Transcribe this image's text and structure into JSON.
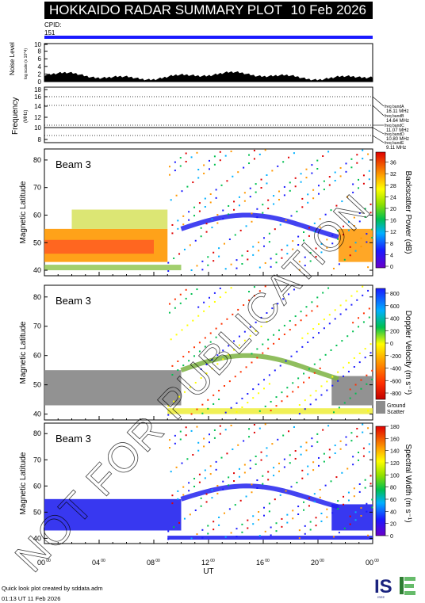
{
  "header": {
    "title": "HOKKAIDO RADAR SUMMARY PLOT",
    "date": "10 Feb 2026"
  },
  "cpid": {
    "label": "CPID:",
    "value": "151"
  },
  "noise": {
    "ylabel": "Noise Level",
    "ylabel_sub": "log scale (x 10^4)",
    "ticks": [
      "0",
      "2",
      "4",
      "6",
      "8",
      "10"
    ]
  },
  "frequency": {
    "ylabel": "Frequency",
    "ylabel_unit": "(MHz)",
    "ticks": [
      "8",
      "10",
      "12",
      "14",
      "16",
      "18"
    ],
    "bands": [
      "freq bandA 16.11 MHz",
      "freq bandB 14.64 MHz",
      "freq bandC 11.07 MHz",
      "freq bandD 10.80 MHz",
      "freq bandE 9.11 MHz"
    ]
  },
  "panels": [
    {
      "beam": "Beam 3",
      "ylabel": "Magnetic Latitude",
      "cbar_label": "Backscatter Power (dB)",
      "cbar_ticks": [
        "0",
        "4",
        "8",
        "12",
        "16",
        "20",
        "24",
        "28",
        "32",
        "36"
      ],
      "cbar_colors": "rainbow"
    },
    {
      "beam": "Beam 3",
      "ylabel": "Magnetic Latitude",
      "cbar_label": "Doppler Velocity (m s⁻¹)",
      "cbar_ticks": [
        "800",
        "600",
        "400",
        "200",
        "0",
        "-200",
        "-400",
        "-600",
        "-800"
      ],
      "cbar_colors": "velocity",
      "ground_label": "Ground",
      "ground_label2": "Scatter"
    },
    {
      "beam": "Beam 3",
      "ylabel": "Magnetic Latitude",
      "cbar_label": "Spectral Width (m s⁻¹)",
      "cbar_ticks": [
        "180",
        "160",
        "140",
        "120",
        "100",
        "80",
        "60",
        "40",
        "20",
        "0"
      ],
      "cbar_colors": "rainbow"
    }
  ],
  "lat_ticks": [
    "40",
    "50",
    "60",
    "70",
    "80"
  ],
  "x_axis": {
    "label": "UT",
    "ticks": [
      "00",
      "04",
      "08",
      "12",
      "16",
      "20",
      "00"
    ],
    "tick_sup": "00"
  },
  "footer": {
    "line1": "Quick look plot created by sddata.adm",
    "line2": "01:13 UT 11 Feb 2026"
  },
  "watermark": "NOT FOR PUBLICATION",
  "logo": "ISEE",
  "colors": {
    "cpid_bar": "#1a1aff",
    "ground": "#8c8c8c"
  },
  "chart_data": {
    "type": "heatmap",
    "title": "HOKKAIDO RADAR SUMMARY PLOT",
    "x": "UT 00–24 h",
    "y": "Magnetic Latitude",
    "ylim": [
      38,
      84
    ],
    "panels": [
      "Backscatter Power (dB)",
      "Doppler Velocity (m s⁻¹)",
      "Spectral Width (m s⁻¹)"
    ]
  }
}
